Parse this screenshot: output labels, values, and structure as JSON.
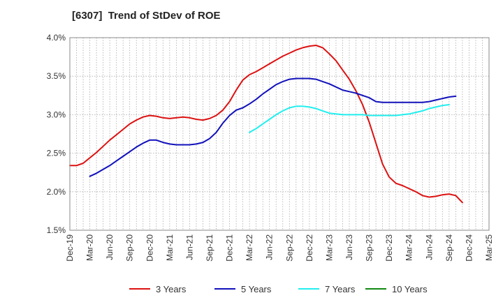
{
  "chart_data": {
    "type": "line",
    "title": "[6307]  Trend of StDev of ROE",
    "xlabel": "",
    "ylabel": "",
    "x_ticks": [
      "Dec-19",
      "Mar-20",
      "Jun-20",
      "Sep-20",
      "Dec-20",
      "Mar-21",
      "Jun-21",
      "Sep-21",
      "Dec-21",
      "Mar-22",
      "Jun-22",
      "Sep-22",
      "Dec-22",
      "Mar-23",
      "Jun-23",
      "Sep-23",
      "Dec-23",
      "Mar-24",
      "Jun-24",
      "Sep-24",
      "Dec-24",
      "Mar-25"
    ],
    "y_ticks": [
      "1.5%",
      "2.0%",
      "2.5%",
      "3.0%",
      "3.5%",
      "4.0%"
    ],
    "ylim": [
      1.5,
      4.0
    ],
    "y_unit": "%",
    "grid": true,
    "legend_position": "bottom",
    "series": [
      {
        "name": "3 Years",
        "color": "#dd1111",
        "start_index": 0,
        "values": [
          2.34,
          2.34,
          2.37,
          2.44,
          2.51,
          2.59,
          2.67,
          2.74,
          2.81,
          2.88,
          2.93,
          2.97,
          2.99,
          2.98,
          2.96,
          2.95,
          2.96,
          2.97,
          2.96,
          2.94,
          2.93,
          2.95,
          2.99,
          3.06,
          3.17,
          3.32,
          3.45,
          3.52,
          3.56,
          3.61,
          3.66,
          3.71,
          3.76,
          3.8,
          3.84,
          3.87,
          3.89,
          3.9,
          3.87,
          3.79,
          3.7,
          3.58,
          3.46,
          3.31,
          3.13,
          2.9,
          2.63,
          2.36,
          2.19,
          2.11,
          2.08,
          2.04,
          2.0,
          1.95,
          1.93,
          1.94,
          1.96,
          1.97,
          1.95,
          1.86
        ]
      },
      {
        "name": "5 Years",
        "color": "#1111bb",
        "start_index": 3,
        "values": [
          2.2,
          2.24,
          2.29,
          2.34,
          2.4,
          2.46,
          2.52,
          2.58,
          2.63,
          2.67,
          2.67,
          2.64,
          2.62,
          2.61,
          2.61,
          2.61,
          2.62,
          2.64,
          2.69,
          2.77,
          2.89,
          2.99,
          3.06,
          3.09,
          3.14,
          3.2,
          3.27,
          3.33,
          3.39,
          3.43,
          3.46,
          3.47,
          3.47,
          3.47,
          3.46,
          3.43,
          3.4,
          3.36,
          3.32,
          3.3,
          3.28,
          3.25,
          3.22,
          3.17,
          3.16,
          3.16,
          3.16,
          3.16,
          3.16,
          3.16,
          3.16,
          3.17,
          3.19,
          3.21,
          3.23,
          3.24
        ]
      },
      {
        "name": "7 Years",
        "color": "#22eeee",
        "start_index": 27,
        "values": [
          2.77,
          2.82,
          2.88,
          2.94,
          3.0,
          3.05,
          3.09,
          3.11,
          3.11,
          3.1,
          3.08,
          3.05,
          3.02,
          3.01,
          3.0,
          3.0,
          3.0,
          3.0,
          2.99,
          2.99,
          2.99,
          2.99,
          2.99,
          3.0,
          3.01,
          3.03,
          3.05,
          3.08,
          3.1,
          3.12,
          3.13
        ]
      },
      {
        "name": "10 Years",
        "color": "#118811",
        "start_index": 0,
        "values": []
      }
    ]
  }
}
